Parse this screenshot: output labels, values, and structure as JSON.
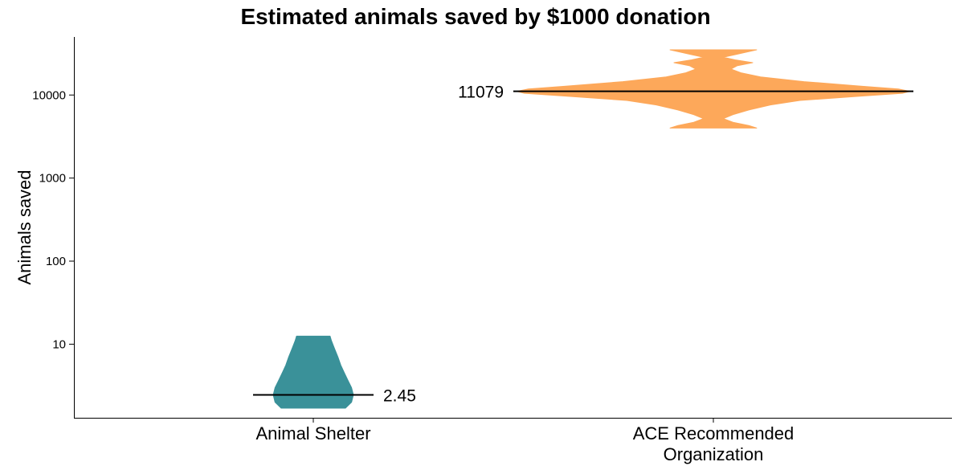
{
  "chart_data": {
    "type": "violin",
    "title": "Estimated animals saved by $1000 donation",
    "xlabel": "",
    "ylabel": "Animals saved",
    "y_scale": "log10",
    "ylim": [
      1.3,
      50000
    ],
    "y_ticks": [
      10,
      100,
      1000,
      10000
    ],
    "y_tick_labels": [
      "10",
      "100",
      "1000",
      "10000"
    ],
    "grid": false,
    "legend": "none",
    "categories": [
      "Animal Shelter",
      "ACE Recommended\nOrganization"
    ],
    "series": [
      {
        "category": "Animal Shelter",
        "color": "#3a9199",
        "median": 2.45,
        "median_label": "2.45",
        "min": 1.7,
        "max": 12.5,
        "density": [
          [
            1.7,
            0.69
          ],
          [
            2.0,
            0.82
          ],
          [
            2.45,
            0.86
          ],
          [
            3.0,
            0.82
          ],
          [
            3.7,
            0.74
          ],
          [
            4.6,
            0.66
          ],
          [
            5.6,
            0.59
          ],
          [
            7.0,
            0.53
          ],
          [
            9.0,
            0.45
          ],
          [
            11.0,
            0.39
          ],
          [
            12.5,
            0.36
          ]
        ]
      },
      {
        "category": "ACE Recommended\nOrganization",
        "color": "#fda85a",
        "median": 11079,
        "median_label": "11079",
        "min": 4000,
        "max": 35000,
        "density": [
          [
            4000,
            0.22
          ],
          [
            4300,
            0.18
          ],
          [
            4700,
            0.1
          ],
          [
            5200,
            0.05
          ],
          [
            5800,
            0.1
          ],
          [
            6600,
            0.18
          ],
          [
            7600,
            0.29
          ],
          [
            8600,
            0.44
          ],
          [
            9700,
            0.75
          ],
          [
            10500,
            0.96
          ],
          [
            11079,
            1.0
          ],
          [
            11800,
            0.94
          ],
          [
            12800,
            0.75
          ],
          [
            14500,
            0.46
          ],
          [
            16500,
            0.24
          ],
          [
            18500,
            0.14
          ],
          [
            20500,
            0.09
          ],
          [
            22500,
            0.12
          ],
          [
            24500,
            0.2
          ],
          [
            26500,
            0.11
          ],
          [
            28500,
            0.05
          ],
          [
            31000,
            0.12
          ],
          [
            35000,
            0.22
          ]
        ]
      }
    ]
  }
}
